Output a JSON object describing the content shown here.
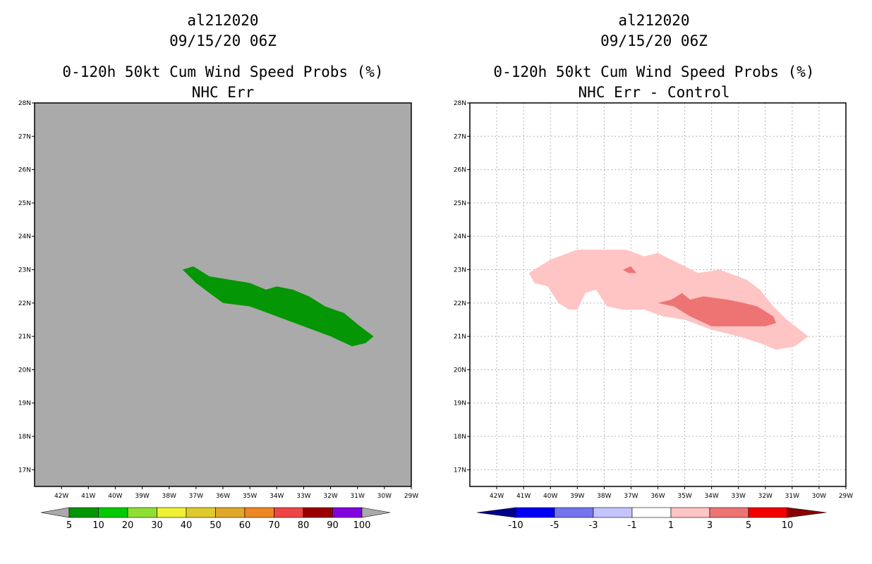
{
  "chart_data": [
    {
      "type": "filled-contour-map",
      "title_lines": [
        "al212020",
        "09/15/20 06Z",
        "0-120h 50kt Cum Wind Speed Probs (%)",
        "NHC Err"
      ],
      "lon_range": [
        -43,
        -29
      ],
      "lat_range": [
        16.5,
        28
      ],
      "x_ticks": [
        "42W",
        "41W",
        "40W",
        "39W",
        "38W",
        "37W",
        "36W",
        "35W",
        "34W",
        "33W",
        "32W",
        "31W",
        "30W",
        "29W"
      ],
      "y_ticks": [
        "17N",
        "18N",
        "19N",
        "20N",
        "21N",
        "22N",
        "23N",
        "24N",
        "25N",
        "26N",
        "27N",
        "28N"
      ],
      "background_color": "#aaaaaa",
      "grid": false,
      "contours": [
        {
          "level": "5-10",
          "color": "#049604",
          "polygon": [
            [
              -37.5,
              23.0
            ],
            [
              -37.1,
              23.1
            ],
            [
              -36.9,
              23.0
            ],
            [
              -36.5,
              22.8
            ],
            [
              -35.0,
              22.6
            ],
            [
              -34.4,
              22.4
            ],
            [
              -34.0,
              22.5
            ],
            [
              -33.4,
              22.4
            ],
            [
              -32.8,
              22.2
            ],
            [
              -32.2,
              21.9
            ],
            [
              -31.5,
              21.7
            ],
            [
              -30.9,
              21.3
            ],
            [
              -30.4,
              21.0
            ],
            [
              -30.7,
              20.8
            ],
            [
              -31.2,
              20.7
            ],
            [
              -32.0,
              21.0
            ],
            [
              -33.0,
              21.3
            ],
            [
              -34.0,
              21.6
            ],
            [
              -35.0,
              21.9
            ],
            [
              -36.0,
              22.0
            ],
            [
              -36.5,
              22.3
            ],
            [
              -37.0,
              22.6
            ]
          ]
        }
      ],
      "colorbar": {
        "labels": [
          "5",
          "10",
          "20",
          "30",
          "40",
          "50",
          "60",
          "70",
          "80",
          "90",
          "100"
        ],
        "colors": [
          "#049604",
          "#04ca04",
          "#90de34",
          "#f0f034",
          "#deca2c",
          "#dea82c",
          "#ee8624",
          "#ee4444",
          "#9a0000",
          "#8204de"
        ],
        "under_color": "#aaaaaa",
        "over_color": "#aaaaaa"
      }
    },
    {
      "type": "filled-contour-map",
      "title_lines": [
        "al212020",
        "09/15/20 06Z",
        "0-120h 50kt Cum Wind Speed Probs (%)",
        "NHC Err - Control"
      ],
      "lon_range": [
        -43,
        -29
      ],
      "lat_range": [
        16.5,
        28
      ],
      "x_ticks": [
        "42W",
        "41W",
        "40W",
        "39W",
        "38W",
        "37W",
        "36W",
        "35W",
        "34W",
        "33W",
        "32W",
        "31W",
        "30W",
        "29W"
      ],
      "y_ticks": [
        "17N",
        "18N",
        "19N",
        "20N",
        "21N",
        "22N",
        "23N",
        "24N",
        "25N",
        "26N",
        "27N",
        "28N"
      ],
      "background_color": "#ffffff",
      "grid": true,
      "contours": [
        {
          "level": "1-3",
          "color": "#ffc4c4",
          "polygon": [
            [
              -40.8,
              22.9
            ],
            [
              -40.0,
              23.3
            ],
            [
              -39.0,
              23.6
            ],
            [
              -38.0,
              23.6
            ],
            [
              -37.2,
              23.6
            ],
            [
              -36.5,
              23.4
            ],
            [
              -36.0,
              23.5
            ],
            [
              -35.5,
              23.3
            ],
            [
              -35.0,
              23.1
            ],
            [
              -34.5,
              22.9
            ],
            [
              -33.7,
              23.0
            ],
            [
              -32.7,
              22.7
            ],
            [
              -32.2,
              22.4
            ],
            [
              -31.7,
              21.9
            ],
            [
              -31.2,
              21.5
            ],
            [
              -30.4,
              21.0
            ],
            [
              -30.9,
              20.7
            ],
            [
              -31.6,
              20.6
            ],
            [
              -32.2,
              20.8
            ],
            [
              -33.0,
              21.0
            ],
            [
              -34.0,
              21.2
            ],
            [
              -35.0,
              21.5
            ],
            [
              -35.8,
              21.6
            ],
            [
              -36.5,
              21.8
            ],
            [
              -37.3,
              21.8
            ],
            [
              -37.9,
              21.9
            ],
            [
              -38.3,
              22.4
            ],
            [
              -38.7,
              22.3
            ],
            [
              -39.0,
              21.8
            ],
            [
              -39.3,
              21.8
            ],
            [
              -39.7,
              22.0
            ],
            [
              -40.1,
              22.5
            ],
            [
              -40.6,
              22.6
            ]
          ]
        },
        {
          "level": "3-5",
          "color": "#ee7474",
          "polygon": [
            [
              -36.0,
              22.0
            ],
            [
              -35.5,
              22.1
            ],
            [
              -35.1,
              22.3
            ],
            [
              -34.8,
              22.1
            ],
            [
              -34.3,
              22.2
            ],
            [
              -33.4,
              22.1
            ],
            [
              -32.8,
              22.0
            ],
            [
              -32.3,
              21.9
            ],
            [
              -31.7,
              21.6
            ],
            [
              -31.6,
              21.4
            ],
            [
              -32.0,
              21.3
            ],
            [
              -33.0,
              21.3
            ],
            [
              -34.0,
              21.3
            ],
            [
              -34.8,
              21.6
            ],
            [
              -35.4,
              21.9
            ]
          ]
        },
        {
          "level": "3-5",
          "color": "#ee7474",
          "polygon": [
            [
              -37.3,
              23.0
            ],
            [
              -37.0,
              23.1
            ],
            [
              -36.8,
              22.9
            ],
            [
              -37.1,
              22.9
            ]
          ]
        }
      ],
      "colorbar": {
        "labels": [
          "-10",
          "-5",
          "-3",
          "-1",
          "1",
          "3",
          "5",
          "10"
        ],
        "colors": [
          "#0000f4",
          "#7474ee",
          "#c4c4ff",
          "#ffffff",
          "#ffc4c4",
          "#ee7474",
          "#f40000"
        ],
        "under_color": "#00008c",
        "over_color": "#8c0000"
      }
    }
  ]
}
